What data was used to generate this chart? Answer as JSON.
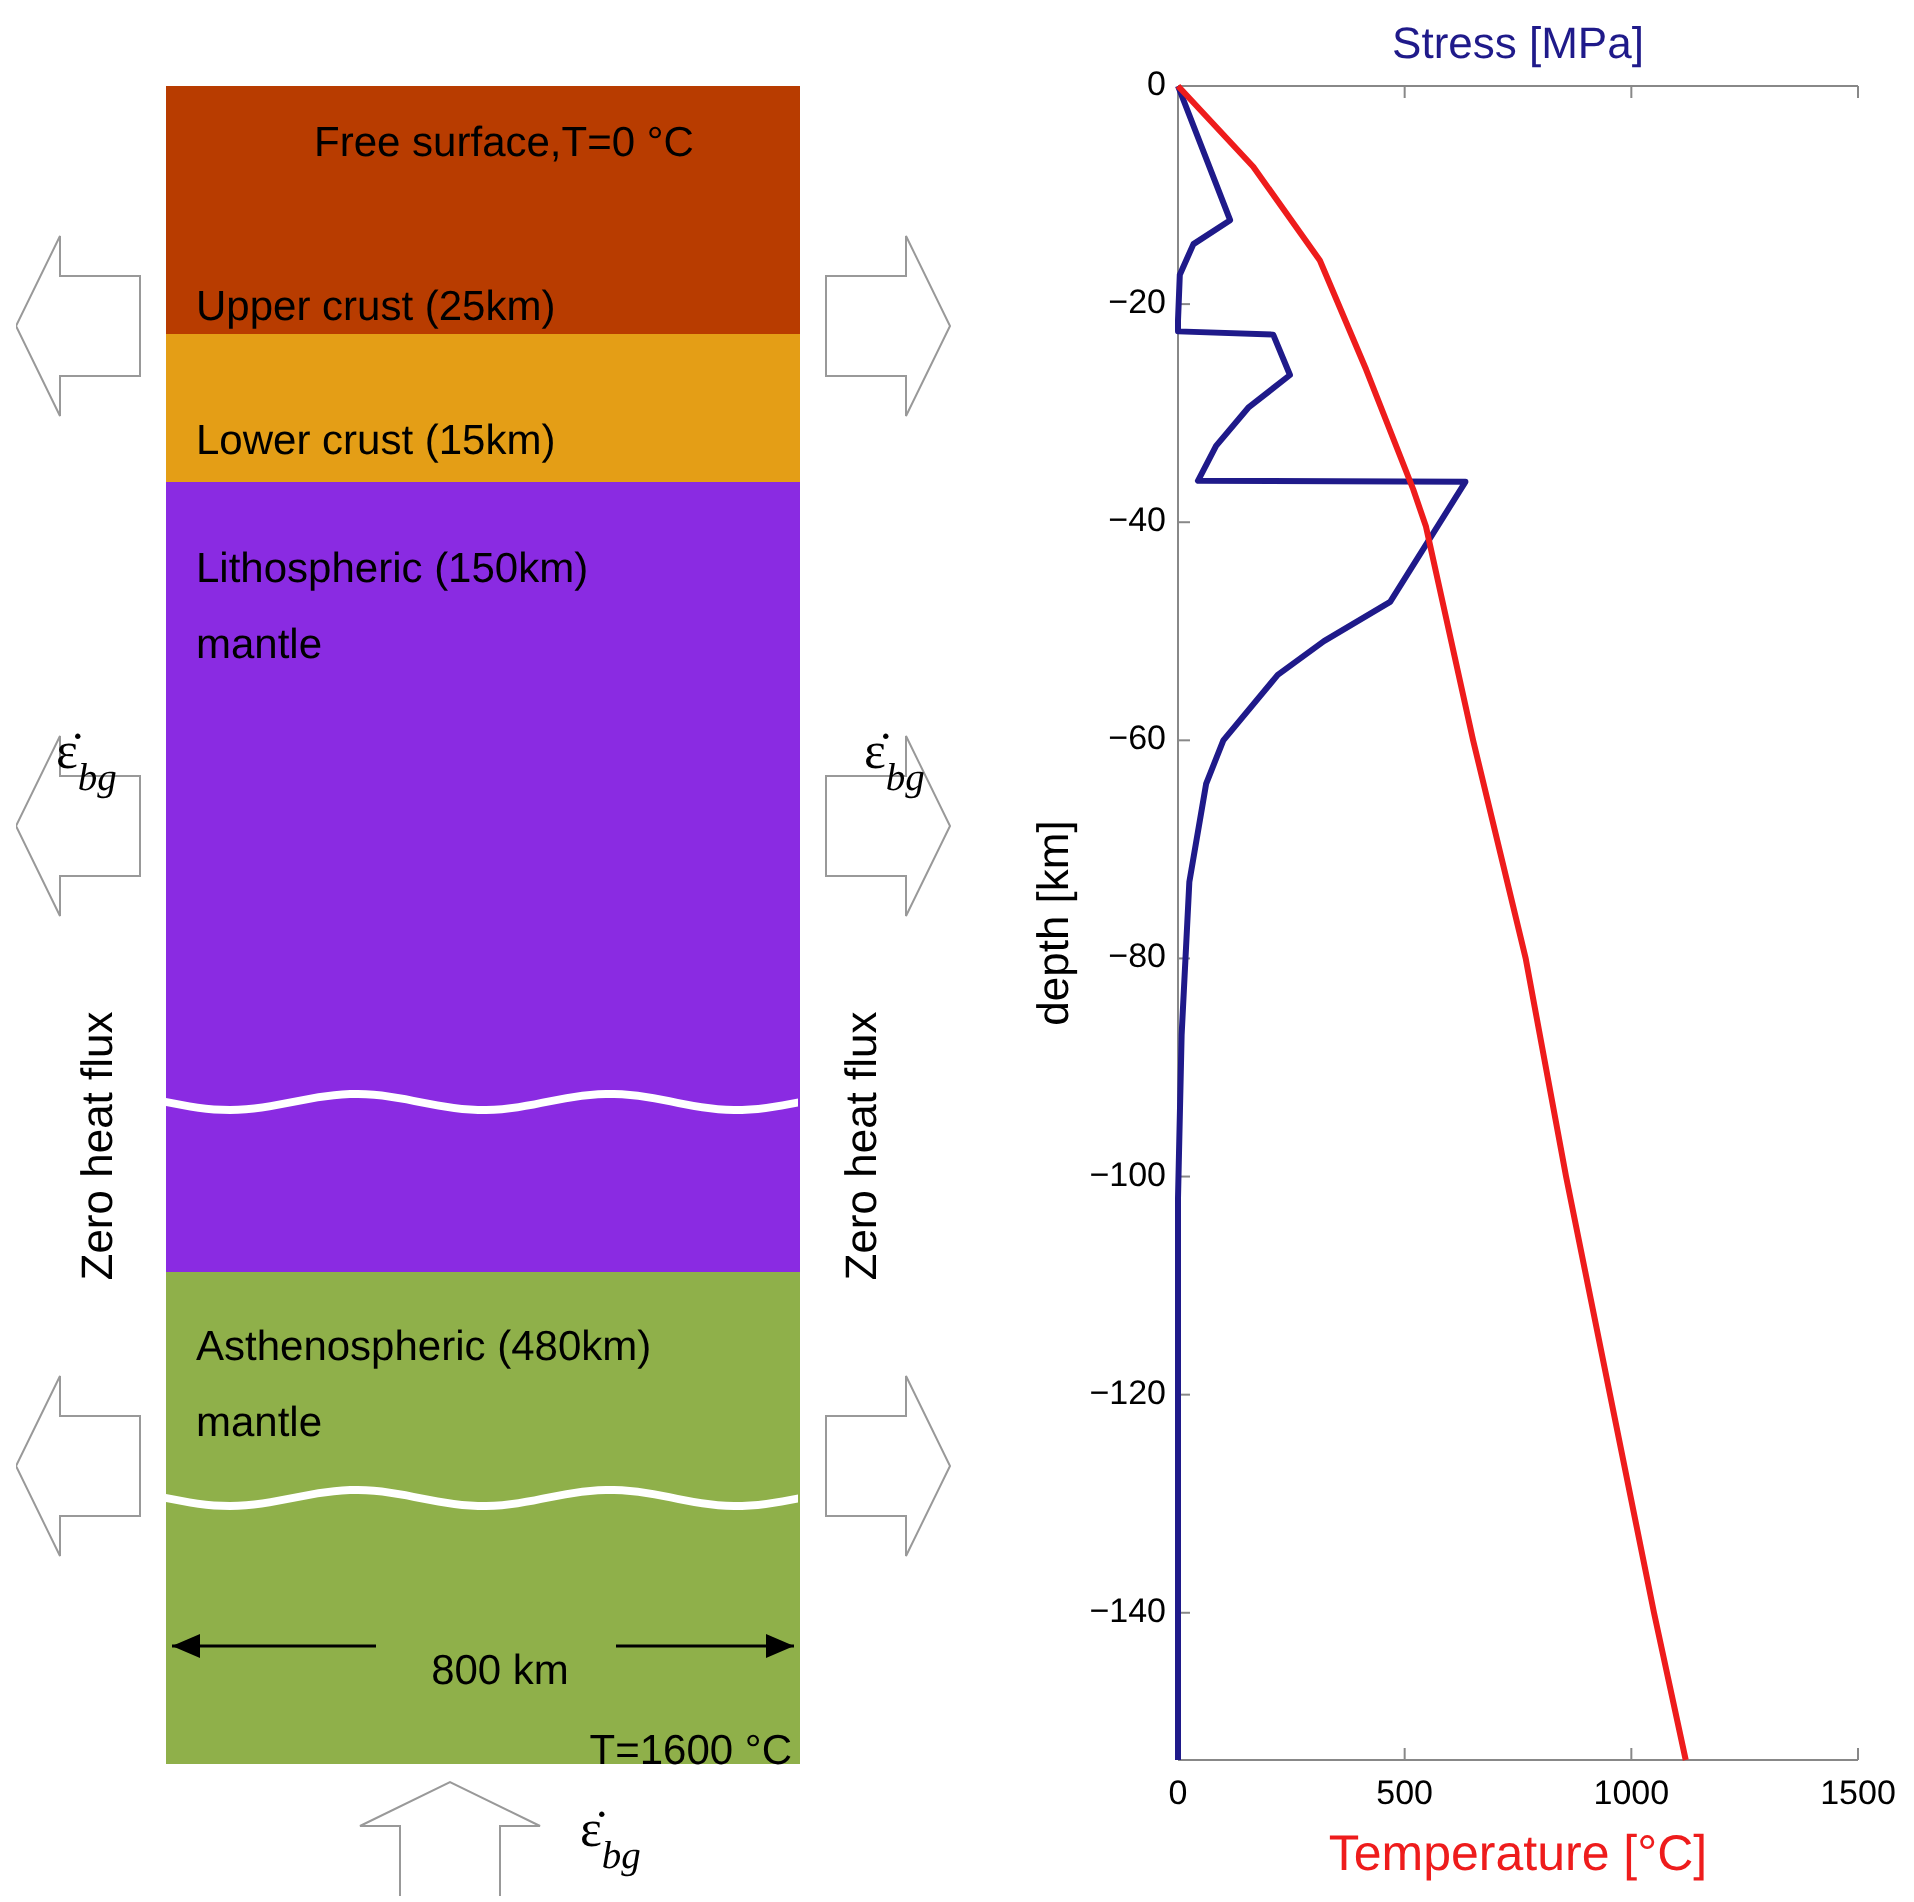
{
  "chart_data": [
    {
      "type": "other",
      "annotations": [
        "Free surface,T=0 °C",
        "Upper crust (25km)",
        "Lower crust (15km)",
        "Lithospheric (150km)\nmantle",
        "Zero heat flux",
        "Zero heat flux",
        "Asthenospheric (480km)\nmantle",
        "800 km",
        "T=1600 °C",
        "ε̇$_{bg}$",
        "ε̇$_{bg}$",
        "ε̇$_{bg}$"
      ]
    },
    {
      "type": "line",
      "xlabel": "Temperature [°C]",
      "x2label": "Stress [MPa]",
      "ylabel": "depth [km]",
      "xlim": [
        0,
        1500
      ],
      "xticks": [
        0,
        500,
        1000,
        1500
      ],
      "ylim": [
        -153.5,
        0
      ],
      "yticks": [
        {
          "value": 0,
          "label": "0"
        },
        {
          "value": -20,
          "label": "−20"
        },
        {
          "value": -40,
          "label": "−40"
        },
        {
          "value": -60,
          "label": "−60"
        },
        {
          "value": -80,
          "label": "−80"
        },
        {
          "value": -100,
          "label": "−100"
        },
        {
          "value": -120,
          "label": "−120"
        },
        {
          "value": -140,
          "label": "−140"
        }
      ],
      "grid": false,
      "legend": false,
      "marker": "none",
      "line_style": "solid",
      "series": [
        {
          "color": "#1f1a8a",
          "x": [
            0,
            115,
            34,
            4,
            0,
            0,
            210,
            247,
            155,
            84,
            44,
            634,
            468,
            322,
            220,
            100,
            62,
            25,
            8,
            0,
            0
          ],
          "values": [
            0,
            -12.3,
            -14.5,
            -17.3,
            -21.5,
            -22.5,
            -22.8,
            -26.5,
            -29.5,
            -33,
            -36.2,
            -36.3,
            -47.3,
            -50.9,
            -54,
            -60,
            -64,
            -73,
            -87,
            -102,
            -153.5
          ]
        },
        {
          "color": "#ee1c1c",
          "x": [
            0,
            166,
            313,
            415,
            519,
            547,
            651,
            767,
            856,
            953,
            1050,
            1120
          ],
          "values": [
            0,
            -7.4,
            -16,
            -26,
            -37,
            -40.4,
            -60,
            -80,
            -100,
            -120,
            -140,
            -153.5
          ]
        }
      ]
    }
  ]
}
